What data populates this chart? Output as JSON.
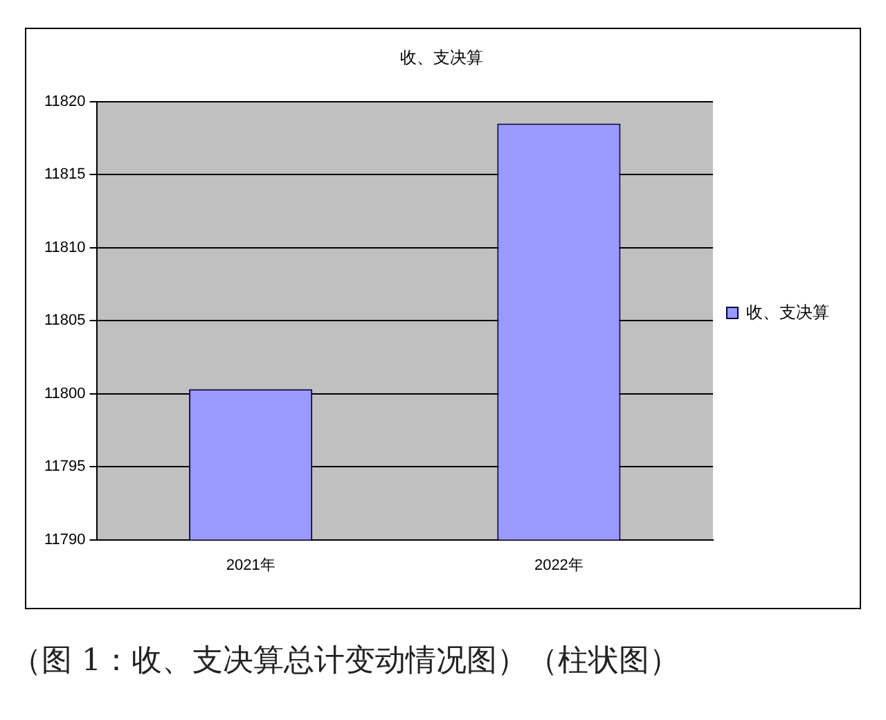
{
  "chart_data": {
    "type": "bar",
    "title": "收、支决算",
    "categories": [
      "2021年",
      "2022年"
    ],
    "series": [
      {
        "name": "收、支决算",
        "color": "#9999ff",
        "values": [
          11800.3,
          11818.5
        ]
      }
    ],
    "ylim": [
      11790,
      11820
    ],
    "yticks": [
      11790,
      11795,
      11800,
      11805,
      11810,
      11815,
      11820
    ],
    "grid": "y",
    "legend": "right",
    "annotations": [
      "（图 1：收、支决算总计变动情况图）（柱状图）"
    ]
  }
}
